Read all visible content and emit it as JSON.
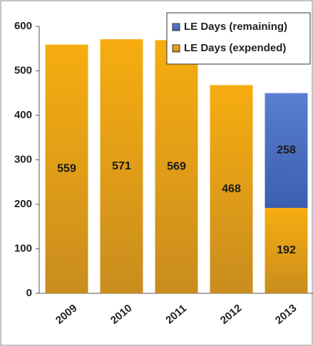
{
  "chart_data": {
    "type": "stacked_bar",
    "categories": [
      "2009",
      "2010",
      "2011",
      "2012",
      "2013"
    ],
    "series": [
      {
        "name": "LE Days (expended)",
        "color": "#f0a30a",
        "values": [
          559,
          571,
          569,
          468,
          192
        ]
      },
      {
        "name": "LE Days (remaining)",
        "color": "#4a6fc0",
        "values": [
          null,
          null,
          null,
          null,
          258
        ]
      }
    ],
    "ylim": [
      0,
      600
    ],
    "yticks": [
      0,
      100,
      200,
      300,
      400,
      500,
      600
    ],
    "grid": false,
    "legend": "top-right"
  }
}
